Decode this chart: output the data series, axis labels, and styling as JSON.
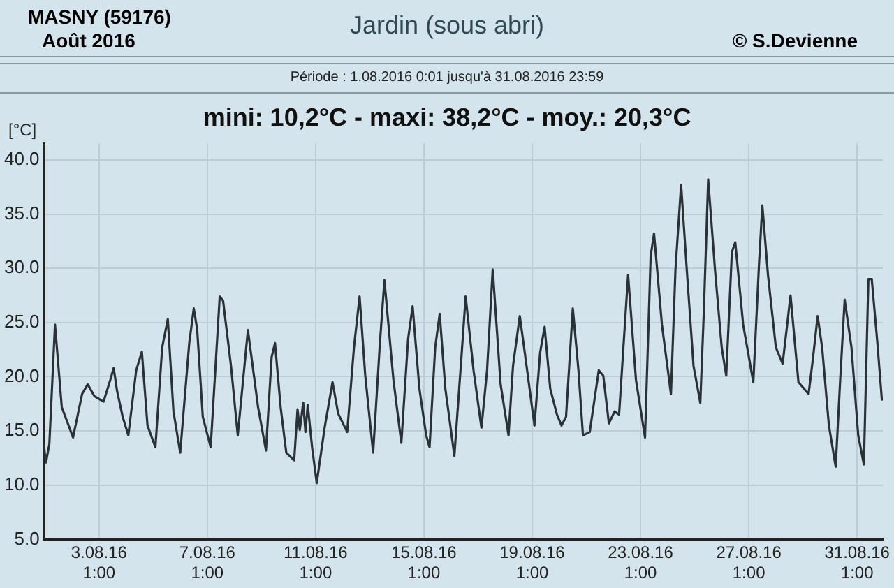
{
  "chart_data": {
    "type": "line",
    "title": "Jardin (sous abri)",
    "subtitle": "mini:  10,2°C - maxi: 38,2°C - moy.: 20,3°C",
    "ylabel": "[°C]",
    "annotations": [
      "MASNY (59176)",
      "Août 2016",
      "© S.Devienne",
      "Période :  1.08.2016   0:01   jusqu'à 31.08.2016   23:59"
    ],
    "series": [
      {
        "color": "#2a3238",
        "x": [
          "2016-08-01T00:00",
          "2016-08-01T02:00",
          "2016-08-01T05:00",
          "2016-08-01T10:00",
          "2016-08-01T16:00",
          "2016-08-02T02:00",
          "2016-08-02T10:00",
          "2016-08-02T15:00",
          "2016-08-02T21:00",
          "2016-08-03T05:00",
          "2016-08-03T11:00",
          "2016-08-03T14:00",
          "2016-08-03T17:00",
          "2016-08-03T22:00",
          "2016-08-04T03:00",
          "2016-08-04T10:00",
          "2016-08-04T15:00",
          "2016-08-04T20:00",
          "2016-08-05T03:00",
          "2016-08-05T09:00",
          "2016-08-05T14:00",
          "2016-08-05T19:00",
          "2016-08-06T01:00",
          "2016-08-06T09:00",
          "2016-08-06T13:00",
          "2016-08-06T16:00",
          "2016-08-06T21:00",
          "2016-08-07T04:00",
          "2016-08-07T12:00",
          "2016-08-07T15:00",
          "2016-08-07T22:00",
          "2016-08-08T04:00",
          "2016-08-08T13:00",
          "2016-08-08T22:00",
          "2016-08-09T05:00",
          "2016-08-09T10:00",
          "2016-08-09T13:00",
          "2016-08-09T18:00",
          "2016-08-09T23:00",
          "2016-08-10T06:00",
          "2016-08-10T09:00",
          "2016-08-10T11:00",
          "2016-08-10T14:00",
          "2016-08-10T16:00",
          "2016-08-10T18:00",
          "2016-08-10T22:00",
          "2016-08-11T02:00",
          "2016-08-11T09:00",
          "2016-08-11T16:00",
          "2016-08-11T21:00",
          "2016-08-12T05:00",
          "2016-08-12T11:00",
          "2016-08-12T16:00",
          "2016-08-12T21:00",
          "2016-08-13T04:00",
          "2016-08-13T10:00",
          "2016-08-13T14:00",
          "2016-08-13T22:00",
          "2016-08-14T05:00",
          "2016-08-14T11:00",
          "2016-08-14T15:00",
          "2016-08-14T21:00",
          "2016-08-15T03:00",
          "2016-08-15T06:00",
          "2016-08-15T11:00",
          "2016-08-15T15:00",
          "2016-08-15T20:00",
          "2016-08-16T04:00",
          "2016-08-16T10:00",
          "2016-08-16T14:00",
          "2016-08-16T21:00",
          "2016-08-17T04:00",
          "2016-08-17T09:00",
          "2016-08-17T14:00",
          "2016-08-17T21:00",
          "2016-08-18T04:00",
          "2016-08-18T08:00",
          "2016-08-18T14:00",
          "2016-08-18T20:00",
          "2016-08-19T03:00",
          "2016-08-19T08:00",
          "2016-08-19T12:00",
          "2016-08-19T17:00",
          "2016-08-19T23:00",
          "2016-08-20T03:00",
          "2016-08-20T07:00",
          "2016-08-20T13:00",
          "2016-08-20T18:00",
          "2016-08-20T22:00",
          "2016-08-21T04:00",
          "2016-08-21T12:00",
          "2016-08-21T16:00",
          "2016-08-21T21:00",
          "2016-08-22T02:00",
          "2016-08-22T06:00",
          "2016-08-22T14:00",
          "2016-08-22T21:00",
          "2016-08-23T05:00",
          "2016-08-23T10:00",
          "2016-08-23T13:00",
          "2016-08-23T20:00",
          "2016-08-24T04:00",
          "2016-08-24T08:00",
          "2016-08-24T13:00",
          "2016-08-24T18:00",
          "2016-08-25T00:00",
          "2016-08-25T06:00",
          "2016-08-25T09:00",
          "2016-08-25T13:00",
          "2016-08-25T19:00",
          "2016-08-26T01:00",
          "2016-08-26T05:00",
          "2016-08-26T10:00",
          "2016-08-26T13:00",
          "2016-08-26T20:00",
          "2016-08-27T05:00",
          "2016-08-27T10:00",
          "2016-08-27T13:00",
          "2016-08-27T18:00",
          "2016-08-28T01:00",
          "2016-08-28T07:00",
          "2016-08-28T14:00",
          "2016-08-28T21:00",
          "2016-08-29T06:00",
          "2016-08-29T10:00",
          "2016-08-29T14:00",
          "2016-08-29T18:00",
          "2016-08-30T00:00",
          "2016-08-30T06:00",
          "2016-08-30T10:00",
          "2016-08-30T14:00",
          "2016-08-30T20:00",
          "2016-08-31T02:00",
          "2016-08-31T07:00",
          "2016-08-31T11:00",
          "2016-08-31T14:00",
          "2016-08-31T19:00",
          "2016-08-31T23:00"
        ],
        "values": [
          13.8,
          12.1,
          13.8,
          24.8,
          17.2,
          14.4,
          18.4,
          19.3,
          18.2,
          17.7,
          19.7,
          20.8,
          18.7,
          16.3,
          14.6,
          20.6,
          22.3,
          15.5,
          13.5,
          22.7,
          25.3,
          16.8,
          13.0,
          23.1,
          26.3,
          24.4,
          16.3,
          13.5,
          27.4,
          27.0,
          21.0,
          14.6,
          24.3,
          17.2,
          13.2,
          21.8,
          23.1,
          17.2,
          13.0,
          12.3,
          17.0,
          15.1,
          17.6,
          14.9,
          17.4,
          13.4,
          10.2,
          15.3,
          19.5,
          16.6,
          14.9,
          22.7,
          27.4,
          20.1,
          13.0,
          23.1,
          28.9,
          19.7,
          13.9,
          23.5,
          26.5,
          18.9,
          14.6,
          13.5,
          22.7,
          25.8,
          18.9,
          12.7,
          21.4,
          27.4,
          20.6,
          15.3,
          20.6,
          29.9,
          19.3,
          14.6,
          21.0,
          25.6,
          21.0,
          15.5,
          22.2,
          24.6,
          18.9,
          16.5,
          15.5,
          16.3,
          26.3,
          20.6,
          14.6,
          14.9,
          20.6,
          20.1,
          15.7,
          16.8,
          16.5,
          29.4,
          19.7,
          14.4,
          31.1,
          33.2,
          24.8,
          18.4,
          29.9,
          37.7,
          29.9,
          21.0,
          17.6,
          25.6,
          38.2,
          29.9,
          22.7,
          20.1,
          31.5,
          32.4,
          24.8,
          19.5,
          30.3,
          35.8,
          29.4,
          22.7,
          21.2,
          27.5,
          19.5,
          18.4,
          21.8,
          25.6,
          22.7,
          15.5,
          11.7,
          19.7,
          27.1,
          22.7,
          14.6,
          11.9,
          29.0,
          29.0,
          23.1,
          17.8
        ]
      }
    ],
    "xlim": [
      "2016-08-01T00:00",
      "2016-09-01T00:00"
    ],
    "xticks": [
      {
        "value": "2016-08-03T01:00",
        "label": "3.08.16\n1:00"
      },
      {
        "value": "2016-08-07T01:00",
        "label": "7.08.16\n1:00"
      },
      {
        "value": "2016-08-11T01:00",
        "label": "11.08.16\n1:00"
      },
      {
        "value": "2016-08-15T01:00",
        "label": "15.08.16\n1:00"
      },
      {
        "value": "2016-08-19T01:00",
        "label": "19.08.16\n1:00"
      },
      {
        "value": "2016-08-23T01:00",
        "label": "23.08.16\n1:00"
      },
      {
        "value": "2016-08-27T01:00",
        "label": "27.08.16\n1:00"
      },
      {
        "value": "2016-08-31T01:00",
        "label": "31.08.16\n1:00"
      }
    ],
    "ylim": [
      5,
      41.5
    ],
    "yticks": [
      {
        "value": 5,
        "label": "5.0"
      },
      {
        "value": 10,
        "label": "10.0"
      },
      {
        "value": 15,
        "label": "15.0"
      },
      {
        "value": 20,
        "label": "20.0"
      },
      {
        "value": 25,
        "label": "25.0"
      },
      {
        "value": 30,
        "label": "30.0"
      },
      {
        "value": 35,
        "label": "35.0"
      },
      {
        "value": 40,
        "label": "40.0"
      }
    ],
    "grid": true,
    "marker": "none",
    "line_style": "solid",
    "legend": false
  }
}
